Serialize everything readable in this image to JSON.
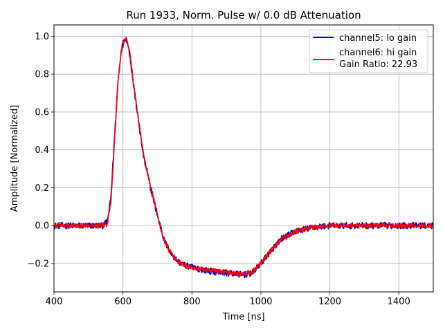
{
  "chart_data": {
    "type": "line",
    "title": "Run 1933, Norm. Pulse w/ 0.0 dB Attenuation",
    "xlabel": "Time [ns]",
    "ylabel": "Amplitude [Normalized]",
    "xlim": [
      400,
      1500
    ],
    "ylim": [
      -0.35,
      1.06
    ],
    "xticks": [
      400,
      600,
      800,
      1000,
      1200,
      1400
    ],
    "xtick_labels": [
      "400",
      "600",
      "800",
      "1000",
      "1200",
      "1400"
    ],
    "yticks": [
      -0.2,
      0.0,
      0.2,
      0.4,
      0.6,
      0.8,
      1.0
    ],
    "ytick_labels": [
      "−0.2",
      "0.0",
      "0.2",
      "0.4",
      "0.6",
      "0.8",
      "1.0"
    ],
    "grid": true,
    "legend_position": "top-right",
    "legend": {
      "entries": [
        "channel5: lo gain",
        "channel6: hi gain"
      ],
      "extra_line": "Gain Ratio: 22.93"
    },
    "x": [
      400,
      450,
      500,
      540,
      555,
      565,
      575,
      585,
      595,
      605,
      612,
      620,
      630,
      645,
      660,
      680,
      700,
      720,
      740,
      760,
      780,
      800,
      850,
      900,
      950,
      975,
      1000,
      1030,
      1060,
      1100,
      1150,
      1200,
      1300,
      1400,
      1500
    ],
    "series": [
      {
        "name": "channel5: lo gain",
        "color": "#0000cc",
        "values": [
          0.0,
          0.0,
          0.0,
          0.0,
          0.02,
          0.15,
          0.45,
          0.75,
          0.93,
          0.99,
          0.98,
          0.9,
          0.75,
          0.55,
          0.36,
          0.2,
          0.05,
          -0.08,
          -0.15,
          -0.19,
          -0.21,
          -0.22,
          -0.24,
          -0.25,
          -0.26,
          -0.25,
          -0.2,
          -0.13,
          -0.07,
          -0.03,
          -0.01,
          0.0,
          0.0,
          0.0,
          0.0
        ]
      },
      {
        "name": "channel6: hi gain",
        "color": "#ff0000",
        "values": [
          0.0,
          0.0,
          0.0,
          0.0,
          0.01,
          0.13,
          0.43,
          0.74,
          0.92,
          0.98,
          0.98,
          0.91,
          0.76,
          0.56,
          0.37,
          0.21,
          0.06,
          -0.08,
          -0.15,
          -0.19,
          -0.21,
          -0.22,
          -0.235,
          -0.245,
          -0.255,
          -0.245,
          -0.2,
          -0.13,
          -0.07,
          -0.03,
          -0.01,
          0.0,
          0.0,
          0.0,
          0.0
        ]
      }
    ]
  }
}
